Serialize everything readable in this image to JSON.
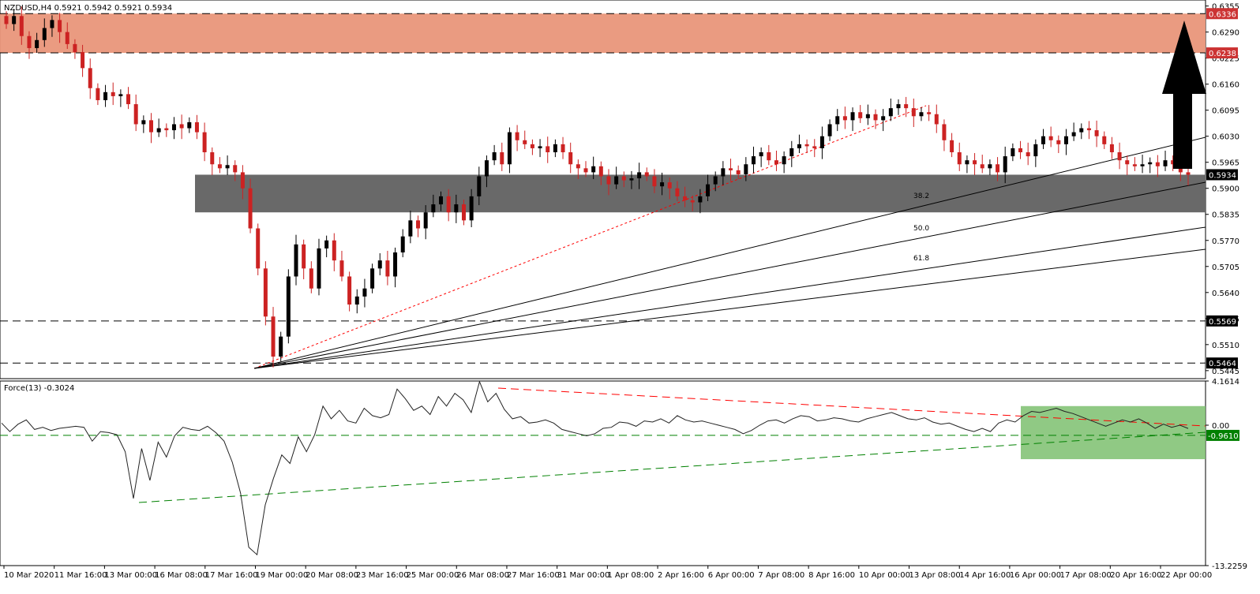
{
  "chart_data": [
    {
      "type": "candlestick",
      "title": "NZDUSD,H4  0.5921 0.5942 0.5921 0.5934",
      "symbol": "NZDUSD",
      "timeframe": "H4",
      "ohlc_last": {
        "open": 0.5921,
        "high": 0.5942,
        "low": 0.5921,
        "close": 0.5934
      },
      "ylim": [
        0.5425,
        0.637
      ],
      "y_ticks": [
        "0.6355",
        "0.6290",
        "0.6225",
        "0.6160",
        "0.6095",
        "0.6030",
        "0.5965",
        "0.5900",
        "0.5835",
        "0.5770",
        "0.5705",
        "0.5640",
        "0.5575",
        "0.5510",
        "0.5445"
      ],
      "y_tick_values": [
        0.6355,
        0.629,
        0.6225,
        0.616,
        0.6095,
        0.603,
        0.5965,
        0.59,
        0.5835,
        0.577,
        0.5705,
        0.564,
        0.5575,
        0.551,
        0.5445
      ],
      "x_ticks": [
        "10 Mar 2020",
        "11 Mar 16:00",
        "13 Mar 00:00",
        "16 Mar 08:00",
        "17 Mar 16:00",
        "19 Mar 00:00",
        "20 Mar 08:00",
        "23 Mar 16:00",
        "25 Mar 00:00",
        "26 Mar 08:00",
        "27 Mar 16:00",
        "31 Mar 00:00",
        "1 Apr 08:00",
        "2 Apr 16:00",
        "6 Apr 00:00",
        "7 Apr 08:00",
        "8 Apr 16:00",
        "10 Apr 00:00",
        "13 Apr 08:00",
        "14 Apr 16:00",
        "16 Apr 00:00",
        "17 Apr 08:00",
        "20 Apr 16:00",
        "22 Apr 00:00"
      ],
      "closes": [
        0.631,
        0.633,
        0.628,
        0.625,
        0.627,
        0.63,
        0.632,
        0.629,
        0.626,
        0.624,
        0.62,
        0.615,
        0.612,
        0.614,
        0.613,
        0.6135,
        0.611,
        0.606,
        0.607,
        0.604,
        0.605,
        0.6045,
        0.606,
        0.605,
        0.6065,
        0.604,
        0.599,
        0.596,
        0.595,
        0.5958,
        0.594,
        0.59,
        0.58,
        0.57,
        0.558,
        0.548,
        0.553,
        0.568,
        0.576,
        0.57,
        0.565,
        0.575,
        0.577,
        0.572,
        0.568,
        0.561,
        0.563,
        0.565,
        0.57,
        0.572,
        0.568,
        0.574,
        0.578,
        0.582,
        0.58,
        0.584,
        0.586,
        0.588,
        0.584,
        0.586,
        0.582,
        0.588,
        0.593,
        0.597,
        0.599,
        0.596,
        0.604,
        0.602,
        0.601,
        0.6,
        0.6005,
        0.599,
        0.601,
        0.599,
        0.596,
        0.595,
        0.594,
        0.5955,
        0.593,
        0.591,
        0.593,
        0.592,
        0.5925,
        0.594,
        0.593,
        0.5905,
        0.5915,
        0.59,
        0.588,
        0.587,
        0.5865,
        0.588,
        0.591,
        0.593,
        0.595,
        0.5945,
        0.5935,
        0.596,
        0.598,
        0.599,
        0.597,
        0.596,
        0.598,
        0.6,
        0.601,
        0.6005,
        0.6,
        0.603,
        0.606,
        0.608,
        0.607,
        0.609,
        0.6075,
        0.6085,
        0.607,
        0.608,
        0.61,
        0.611,
        0.61,
        0.608,
        0.609,
        0.6085,
        0.606,
        0.602,
        0.599,
        0.596,
        0.597,
        0.596,
        0.595,
        0.596,
        0.594,
        0.598,
        0.6,
        0.599,
        0.598,
        0.601,
        0.603,
        0.602,
        0.601,
        0.603,
        0.604,
        0.605,
        0.6045,
        0.603,
        0.601,
        0.599,
        0.597,
        0.596,
        0.5955,
        0.596,
        0.5965,
        0.5955,
        0.597,
        0.596,
        0.594,
        0.5934
      ]
    },
    {
      "type": "line",
      "title": "Force(13) -0.3024",
      "ylim": [
        -13.2259,
        4.1614
      ],
      "y_ticks": [
        "4.1614",
        "0.00",
        "-13.2259"
      ],
      "y_tick_values": [
        4.1614,
        0.0,
        -13.2259
      ],
      "values": [
        0.2,
        -0.6,
        0.1,
        0.5,
        -0.4,
        -0.2,
        -0.5,
        -0.3,
        -0.2,
        -0.1,
        -0.2,
        -1.5,
        -0.6,
        -0.7,
        -0.9,
        -2.5,
        -6.9,
        -2.2,
        -5.2,
        -1.6,
        -3.0,
        -1.0,
        -0.2,
        -0.4,
        -0.5,
        -0.1,
        -0.7,
        -1.5,
        -3.5,
        -6.4,
        -11.5,
        -12.2,
        -7.5,
        -5.0,
        -2.8,
        -3.6,
        -1.1,
        -2.5,
        -0.9,
        1.8,
        0.6,
        1.4,
        0.4,
        0.2,
        1.6,
        0.9,
        0.7,
        1.0,
        3.4,
        2.5,
        1.4,
        1.8,
        1.0,
        2.7,
        1.8,
        3.0,
        2.4,
        1.2,
        4.1,
        2.2,
        3.0,
        1.5,
        0.6,
        0.8,
        0.2,
        0.3,
        0.5,
        0.2,
        -0.4,
        -0.6,
        -0.8,
        -1.0,
        -0.8,
        -0.3,
        -0.2,
        0.3,
        0.2,
        -0.1,
        0.4,
        0.3,
        0.6,
        0.2,
        0.9,
        0.5,
        0.3,
        0.4,
        0.2,
        0.0,
        -0.2,
        -0.4,
        -0.8,
        -0.5,
        0.0,
        0.4,
        0.5,
        0.2,
        0.6,
        0.9,
        0.8,
        0.4,
        0.5,
        0.7,
        0.6,
        0.4,
        0.3,
        0.6,
        0.8,
        1.0,
        1.2,
        0.9,
        0.6,
        0.5,
        0.7,
        0.3,
        0.1,
        0.2,
        -0.1,
        -0.4,
        -0.6,
        -0.3,
        -0.6,
        0.2,
        0.5,
        0.3,
        0.9,
        1.3,
        1.2,
        1.4,
        1.6,
        1.3,
        1.1,
        0.8,
        0.5,
        0.2,
        -0.1,
        0.2,
        0.5,
        0.3,
        0.6,
        0.2,
        -0.3,
        0.1,
        -0.2,
        0.0,
        -0.3024
      ],
      "zero_line": 0.0
    }
  ],
  "levels": {
    "r_top": "0.6336",
    "r_bottom": "0.6238",
    "current": "0.5934",
    "s1": "0.5569",
    "s2": "0.5464",
    "force_level": "-0.9610"
  },
  "level_values": {
    "r_top": 0.6336,
    "r_bottom": 0.6238,
    "current": 0.5934,
    "s1": 0.5569,
    "s2": 0.5464,
    "zone_top": 0.5934,
    "zone_bottom": 0.584
  },
  "fib_labels": [
    "38.2",
    "50.0",
    "61.8"
  ],
  "colors": {
    "bull": "#000000",
    "bear": "#cc2222",
    "resistance_zone": "#e9967a",
    "support_zone": "#696969",
    "force_zone": "#7cbf6e",
    "red_trend": "#ff0000",
    "green_trend": "#008000",
    "level_label_bg": "#000000",
    "resistance_label_bg": "#cc3333"
  }
}
